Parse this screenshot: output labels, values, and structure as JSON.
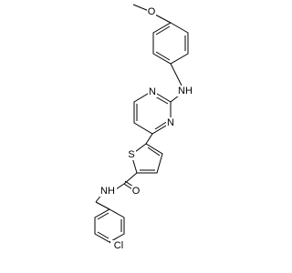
{
  "atoms": {
    "methoxy_o": "O",
    "amine_nh": "NH",
    "pyrimidine_n1": "N",
    "pyrimidine_n3": "N",
    "thiophene_s": "S",
    "carbonyl_o": "O",
    "amide_nh": "NH",
    "chlorine": "Cl"
  }
}
